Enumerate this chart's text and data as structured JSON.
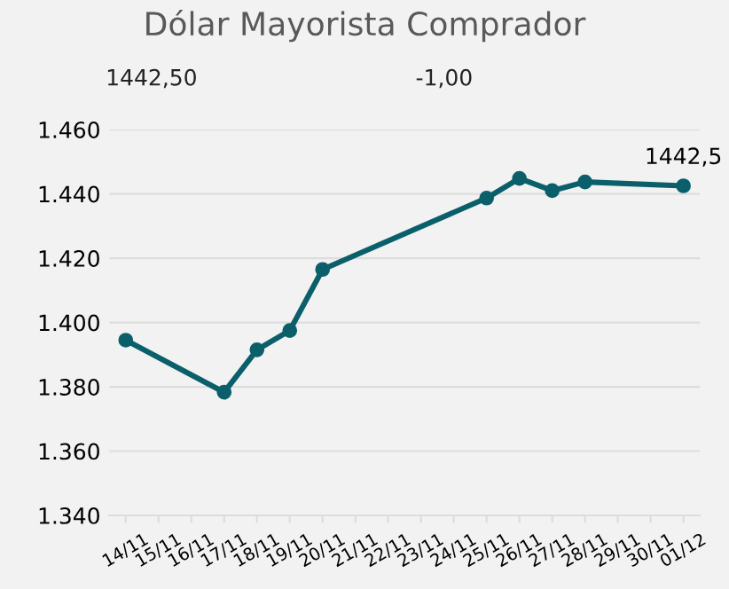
{
  "chart_data": {
    "type": "line",
    "title": "Dólar Mayorista Comprador",
    "annotations": [
      "1442,50",
      "-1,00"
    ],
    "categories": [
      "14/11",
      "15/11",
      "16/11",
      "17/11",
      "18/11",
      "19/11",
      "20/11",
      "21/11",
      "22/11",
      "23/11",
      "24/11",
      "25/11",
      "26/11",
      "27/11",
      "28/11",
      "29/11",
      "30/11",
      "01/12"
    ],
    "series": [
      {
        "color": "#0b5f6b",
        "values": [
          1394.5,
          null,
          null,
          1378.3,
          1391.5,
          1397.5,
          1416.5,
          null,
          null,
          null,
          null,
          1438.7,
          1444.8,
          1441,
          1443.7,
          null,
          null,
          1442.5
        ],
        "value_labels": [
          null,
          null,
          null,
          null,
          null,
          null,
          null,
          null,
          null,
          null,
          null,
          null,
          null,
          null,
          null,
          null,
          null,
          "1442,5"
        ]
      }
    ],
    "ylim": [
      1340,
      1460
    ],
    "yticks": [
      {
        "value": 1340,
        "label": "1.340"
      },
      {
        "value": 1360,
        "label": "1.360"
      },
      {
        "value": 1380,
        "label": "1.380"
      },
      {
        "value": 1400,
        "label": "1.400"
      },
      {
        "value": 1420,
        "label": "1.420"
      },
      {
        "value": 1440,
        "label": "1.440"
      },
      {
        "value": 1460,
        "label": "1.460"
      }
    ],
    "grid": "y",
    "marker": "circle",
    "line_style": "solid",
    "legend": false
  }
}
